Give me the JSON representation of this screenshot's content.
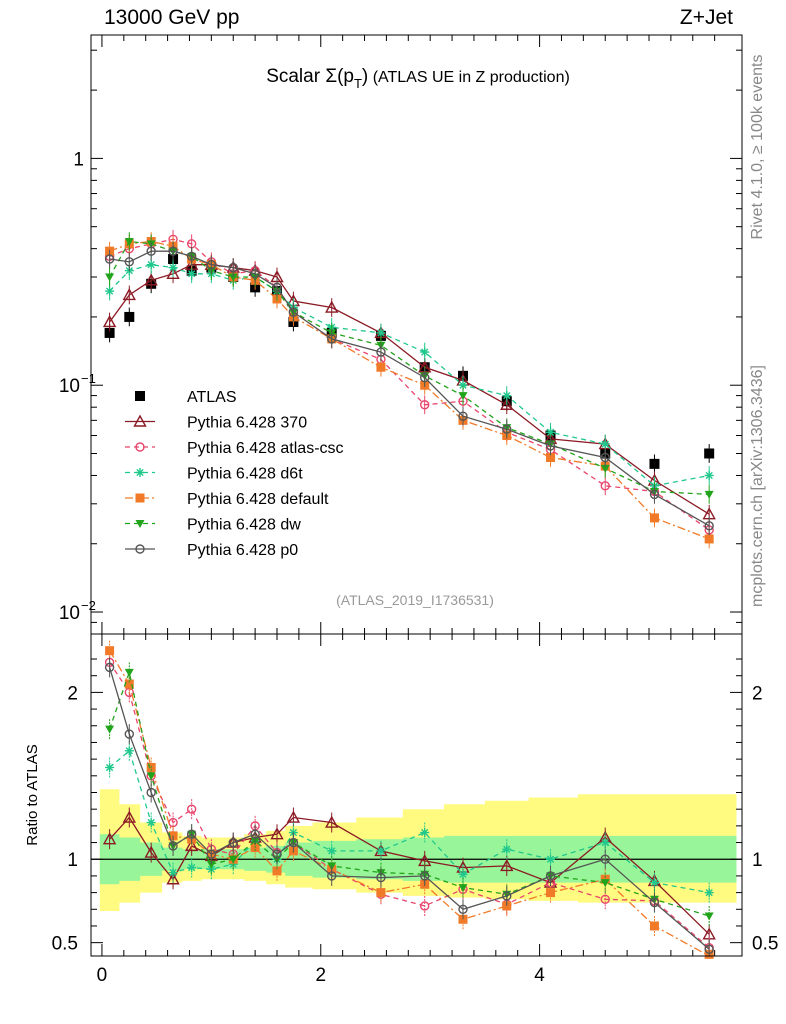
{
  "header": {
    "energy_label": "13000 GeV pp",
    "process_label": "Z+Jet",
    "plot_title_prefix": "Scalar",
    "plot_title_sigma": "Σ(p",
    "plot_title_sub": "T",
    "plot_title_close": ")",
    "plot_title_suffix": " (ATLAS UE in Z production)",
    "analysis_id": "(ATLAS_2019_I1736531)",
    "rivet_label": "Rivet 4.1.0, ≥ 100k events",
    "mcplots_label": "mcplots.cern.ch [arXiv:1306.3436]"
  },
  "chart_data": [
    {
      "type": "scatter",
      "title": "Scalar Σ(pT) (ATLAS UE in Z production)",
      "xlabel": "",
      "ylabel": "",
      "yscale": "log",
      "xlim": [
        -0.1,
        5.85
      ],
      "ylim": [
        0.008,
        3.5
      ],
      "y_ticks": [
        {
          "value": 1,
          "label": "1",
          "exp": ""
        },
        {
          "value": 0.1,
          "label": "10",
          "exp": "−1"
        },
        {
          "value": 0.01,
          "label": "10",
          "exp": "−2"
        }
      ],
      "x": [
        0.07,
        0.25,
        0.45,
        0.65,
        0.82,
        1.0,
        1.2,
        1.4,
        1.6,
        1.75,
        2.1,
        2.55,
        2.95,
        3.3,
        3.7,
        4.1,
        4.6,
        5.05,
        5.55
      ],
      "series": [
        {
          "name": "ATLAS",
          "color": "#000000",
          "marker": "square-filled",
          "line": "none",
          "values": [
            0.17,
            0.2,
            0.28,
            0.36,
            0.32,
            0.33,
            0.3,
            0.27,
            0.26,
            0.19,
            0.17,
            0.165,
            0.12,
            0.11,
            0.085,
            0.06,
            0.05,
            0.045,
            0.05
          ]
        },
        {
          "name": "Pythia 6.428 370",
          "color": "#8b1a24",
          "marker": "triangle-open",
          "line": "solid",
          "values": [
            0.19,
            0.25,
            0.29,
            0.31,
            0.34,
            0.34,
            0.33,
            0.32,
            0.3,
            0.235,
            0.22,
            0.17,
            0.12,
            0.105,
            0.082,
            0.058,
            0.055,
            0.038,
            0.027
          ]
        },
        {
          "name": "Pythia 6.428 atlas-csc",
          "color": "#e8456c",
          "marker": "circle-open",
          "line": "dashed",
          "values": [
            0.37,
            0.4,
            0.42,
            0.44,
            0.42,
            0.35,
            0.31,
            0.32,
            0.27,
            0.21,
            0.16,
            0.13,
            0.082,
            0.085,
            0.062,
            0.052,
            0.036,
            0.034,
            0.023
          ]
        },
        {
          "name": "Pythia 6.428 d6t",
          "color": "#20c88c",
          "marker": "star",
          "line": "dashed",
          "values": [
            0.26,
            0.32,
            0.34,
            0.33,
            0.31,
            0.31,
            0.29,
            0.3,
            0.26,
            0.22,
            0.18,
            0.17,
            0.14,
            0.1,
            0.09,
            0.062,
            0.055,
            0.036,
            0.04
          ]
        },
        {
          "name": "Pythia 6.428 default",
          "color": "#f07a28",
          "marker": "square-filled",
          "line": "dashdot",
          "values": [
            0.39,
            0.42,
            0.43,
            0.41,
            0.36,
            0.34,
            0.3,
            0.29,
            0.24,
            0.2,
            0.16,
            0.12,
            0.1,
            0.07,
            0.06,
            0.048,
            0.044,
            0.026,
            0.021
          ]
        },
        {
          "name": "Pythia 6.428 dw",
          "color": "#22a31c",
          "marker": "triangle-down-filled",
          "line": "dashed",
          "values": [
            0.3,
            0.43,
            0.42,
            0.39,
            0.37,
            0.32,
            0.3,
            0.3,
            0.26,
            0.21,
            0.17,
            0.15,
            0.11,
            0.09,
            0.065,
            0.055,
            0.043,
            0.034,
            0.033
          ]
        },
        {
          "name": "Pythia 6.428 p0",
          "color": "#555555",
          "marker": "circle-open",
          "line": "solid",
          "values": [
            0.36,
            0.35,
            0.39,
            0.39,
            0.37,
            0.34,
            0.33,
            0.31,
            0.27,
            0.21,
            0.16,
            0.14,
            0.108,
            0.073,
            0.064,
            0.054,
            0.048,
            0.033,
            0.024
          ]
        }
      ],
      "legend_position": "middle-left"
    },
    {
      "type": "scatter",
      "title": "",
      "xlabel": "",
      "ylabel": "Ratio to ATLAS",
      "xlim": [
        -0.1,
        5.85
      ],
      "ylim": [
        0.42,
        2.35
      ],
      "x_ticks": [
        0,
        2,
        4
      ],
      "y_ticks": [
        0.5,
        1,
        2
      ],
      "x": [
        0.07,
        0.25,
        0.45,
        0.65,
        0.82,
        1.0,
        1.2,
        1.4,
        1.6,
        1.75,
        2.1,
        2.55,
        2.95,
        3.3,
        3.7,
        4.1,
        4.6,
        5.05,
        5.55
      ],
      "band_1sigma": {
        "lo": [
          0.85,
          0.87,
          0.9,
          0.93,
          0.94,
          0.94,
          0.94,
          0.93,
          0.92,
          0.9,
          0.89,
          0.88,
          0.87,
          0.86,
          0.86,
          0.86,
          0.86,
          0.86,
          0.86
        ],
        "hi": [
          1.15,
          1.13,
          1.1,
          1.07,
          1.06,
          1.06,
          1.06,
          1.07,
          1.08,
          1.1,
          1.11,
          1.12,
          1.13,
          1.14,
          1.14,
          1.14,
          1.14,
          1.14,
          1.14
        ]
      },
      "band_2sigma": {
        "lo": [
          0.69,
          0.74,
          0.8,
          0.86,
          0.87,
          0.88,
          0.88,
          0.87,
          0.85,
          0.83,
          0.82,
          0.8,
          0.78,
          0.77,
          0.76,
          0.75,
          0.74,
          0.74,
          0.74
        ],
        "hi": [
          1.42,
          1.33,
          1.22,
          1.16,
          1.14,
          1.13,
          1.13,
          1.15,
          1.17,
          1.2,
          1.22,
          1.25,
          1.3,
          1.33,
          1.35,
          1.37,
          1.39,
          1.39,
          1.39
        ]
      },
      "series": [
        {
          "name": "Pythia 6.428 370",
          "color": "#8b1a24",
          "marker": "triangle-open",
          "line": "solid",
          "values": [
            1.12,
            1.25,
            1.04,
            0.88,
            1.08,
            1.02,
            1.1,
            1.13,
            1.15,
            1.25,
            1.22,
            1.05,
            0.99,
            0.95,
            0.96,
            0.86,
            1.13,
            0.87,
            0.55
          ]
        },
        {
          "name": "Pythia 6.428 atlas-csc",
          "color": "#e8456c",
          "marker": "circle-open",
          "line": "dashed",
          "values": [
            2.18,
            2.0,
            1.5,
            1.22,
            1.3,
            1.06,
            1.03,
            1.2,
            1.04,
            1.1,
            0.94,
            0.79,
            0.72,
            0.82,
            0.73,
            0.86,
            0.76,
            0.75,
            0.47
          ]
        },
        {
          "name": "Pythia 6.428 d6t",
          "color": "#20c88c",
          "marker": "star",
          "line": "dashed",
          "values": [
            1.55,
            1.65,
            1.22,
            0.92,
            0.95,
            0.94,
            0.97,
            1.11,
            1.0,
            1.16,
            1.05,
            1.05,
            1.16,
            0.91,
            1.06,
            1.0,
            1.1,
            0.86,
            0.8
          ]
        },
        {
          "name": "Pythia 6.428 default",
          "color": "#f07a28",
          "marker": "square-filled",
          "line": "dashdot",
          "values": [
            2.25,
            2.05,
            1.55,
            1.14,
            1.12,
            1.03,
            1.0,
            1.07,
            0.93,
            1.05,
            0.94,
            0.8,
            0.85,
            0.64,
            0.72,
            0.8,
            0.88,
            0.6,
            0.38
          ]
        },
        {
          "name": "Pythia 6.428 dw",
          "color": "#22a31c",
          "marker": "triangle-down-filled",
          "line": "dashed",
          "values": [
            1.78,
            2.12,
            1.5,
            1.08,
            1.15,
            0.97,
            1.0,
            1.11,
            1.0,
            1.1,
            0.96,
            0.92,
            0.91,
            0.83,
            0.79,
            0.9,
            0.86,
            0.76,
            0.66
          ]
        },
        {
          "name": "Pythia 6.428 p0",
          "color": "#555555",
          "marker": "circle-open",
          "line": "solid",
          "values": [
            2.15,
            1.75,
            1.4,
            1.08,
            1.15,
            1.03,
            1.1,
            1.15,
            1.03,
            1.1,
            0.9,
            0.89,
            0.9,
            0.7,
            0.78,
            0.9,
            1.0,
            0.74,
            0.46
          ]
        }
      ]
    }
  ]
}
